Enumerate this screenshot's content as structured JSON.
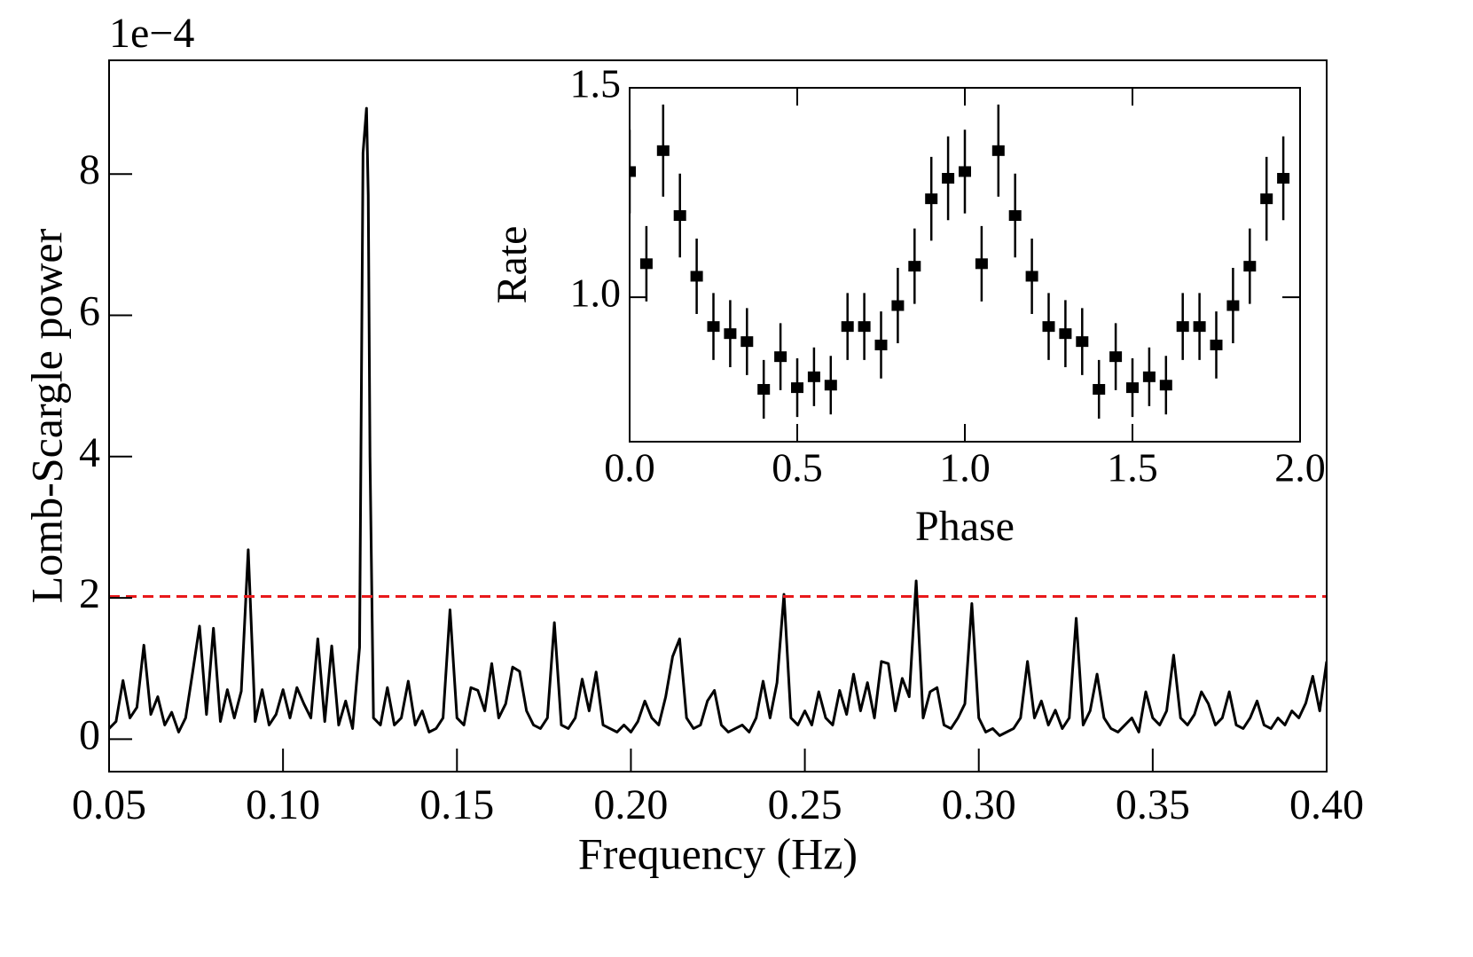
{
  "chart_data": [
    {
      "type": "line",
      "offset_text": "1e−4",
      "xlabel": "Frequency (Hz)",
      "ylabel": "Lomb-Scargle power",
      "color": "#000000",
      "xlim": [
        0.05,
        0.4
      ],
      "ylim": [
        -0.46,
        9.61
      ],
      "xticks": [
        0.05,
        {
          "value": 0.1,
          "label": "0.10"
        },
        0.15,
        {
          "value": 0.2,
          "label": "0.20"
        },
        0.25,
        {
          "value": 0.3,
          "label": "0.30"
        },
        0.35,
        {
          "value": 0.4,
          "label": "0.40"
        }
      ],
      "yticks": [
        0,
        2,
        4,
        6,
        8
      ],
      "hline": {
        "value": 2.02,
        "color": "#e8191b",
        "style": "dashed"
      },
      "x": [
        0.05,
        0.052,
        0.054,
        0.056,
        0.058,
        0.06,
        0.062,
        0.064,
        0.066,
        0.068,
        0.07,
        0.072,
        0.074,
        0.076,
        0.078,
        0.08,
        0.082,
        0.084,
        0.086,
        0.088,
        0.09,
        0.092,
        0.094,
        0.096,
        0.098,
        0.1,
        0.102,
        0.104,
        0.106,
        0.108,
        0.11,
        0.112,
        0.114,
        0.116,
        0.118,
        0.12,
        0.122,
        0.123,
        0.124,
        0.1245,
        0.125,
        0.126,
        0.128,
        0.13,
        0.132,
        0.134,
        0.136,
        0.138,
        0.14,
        0.142,
        0.144,
        0.146,
        0.148,
        0.15,
        0.152,
        0.154,
        0.156,
        0.158,
        0.16,
        0.162,
        0.164,
        0.166,
        0.168,
        0.17,
        0.172,
        0.174,
        0.176,
        0.178,
        0.18,
        0.182,
        0.184,
        0.186,
        0.188,
        0.19,
        0.192,
        0.194,
        0.196,
        0.198,
        0.2,
        0.202,
        0.204,
        0.206,
        0.208,
        0.21,
        0.212,
        0.214,
        0.216,
        0.218,
        0.22,
        0.222,
        0.224,
        0.226,
        0.228,
        0.23,
        0.232,
        0.234,
        0.236,
        0.238,
        0.24,
        0.242,
        0.244,
        0.246,
        0.248,
        0.25,
        0.252,
        0.254,
        0.256,
        0.258,
        0.26,
        0.262,
        0.264,
        0.266,
        0.268,
        0.27,
        0.272,
        0.274,
        0.276,
        0.278,
        0.28,
        0.282,
        0.284,
        0.286,
        0.288,
        0.29,
        0.292,
        0.294,
        0.296,
        0.298,
        0.3,
        0.302,
        0.304,
        0.306,
        0.308,
        0.31,
        0.312,
        0.314,
        0.316,
        0.318,
        0.32,
        0.322,
        0.324,
        0.326,
        0.328,
        0.33,
        0.332,
        0.334,
        0.336,
        0.338,
        0.34,
        0.342,
        0.344,
        0.346,
        0.348,
        0.35,
        0.352,
        0.354,
        0.356,
        0.358,
        0.36,
        0.362,
        0.364,
        0.366,
        0.368,
        0.37,
        0.372,
        0.374,
        0.376,
        0.378,
        0.38,
        0.382,
        0.384,
        0.386,
        0.388,
        0.39,
        0.392,
        0.394,
        0.396,
        0.398,
        0.4
      ],
      "values": [
        0.15,
        0.25,
        0.83,
        0.3,
        0.45,
        1.33,
        0.35,
        0.6,
        0.2,
        0.38,
        0.1,
        0.3,
        0.94,
        1.6,
        0.35,
        1.57,
        0.25,
        0.7,
        0.3,
        0.68,
        2.68,
        0.25,
        0.7,
        0.2,
        0.35,
        0.7,
        0.3,
        0.73,
        0.5,
        0.3,
        1.42,
        0.25,
        1.32,
        0.2,
        0.54,
        0.15,
        1.3,
        8.3,
        8.93,
        7.7,
        4.0,
        0.3,
        0.2,
        0.73,
        0.2,
        0.3,
        0.82,
        0.2,
        0.4,
        0.1,
        0.15,
        0.3,
        1.83,
        0.3,
        0.2,
        0.73,
        0.69,
        0.4,
        1.07,
        0.3,
        0.5,
        1.02,
        0.96,
        0.4,
        0.2,
        0.15,
        0.3,
        1.65,
        0.2,
        0.15,
        0.3,
        0.85,
        0.4,
        0.95,
        0.2,
        0.15,
        0.1,
        0.2,
        0.1,
        0.25,
        0.54,
        0.3,
        0.2,
        0.6,
        1.17,
        1.42,
        0.3,
        0.15,
        0.2,
        0.54,
        0.69,
        0.2,
        0.1,
        0.15,
        0.2,
        0.1,
        0.3,
        0.82,
        0.3,
        0.8,
        2.05,
        0.3,
        0.2,
        0.4,
        0.2,
        0.67,
        0.3,
        0.2,
        0.69,
        0.35,
        0.92,
        0.4,
        0.8,
        0.3,
        1.1,
        1.07,
        0.4,
        0.86,
        0.6,
        2.24,
        0.3,
        0.67,
        0.73,
        0.2,
        0.15,
        0.3,
        0.5,
        1.92,
        0.3,
        0.1,
        0.15,
        0.05,
        0.1,
        0.15,
        0.3,
        1.1,
        0.3,
        0.54,
        0.2,
        0.41,
        0.15,
        0.3,
        1.71,
        0.2,
        0.4,
        0.92,
        0.3,
        0.15,
        0.1,
        0.2,
        0.3,
        0.1,
        0.67,
        0.3,
        0.2,
        0.4,
        1.19,
        0.3,
        0.2,
        0.35,
        0.67,
        0.5,
        0.2,
        0.3,
        0.67,
        0.2,
        0.15,
        0.3,
        0.54,
        0.2,
        0.15,
        0.3,
        0.2,
        0.4,
        0.3,
        0.51,
        0.89,
        0.4,
        1.1
      ]
    },
    {
      "type": "errorbar",
      "xlabel": "Phase",
      "ylabel": "Rate",
      "color": "#000000",
      "xlim": [
        0,
        2
      ],
      "ylim": [
        0.655,
        1.5
      ],
      "xticks": [
        {
          "value": 0,
          "label": "0.0"
        },
        0.5,
        {
          "value": 1,
          "label": "1.0"
        },
        1.5,
        {
          "value": 2,
          "label": "2.0"
        }
      ],
      "yticks": [
        {
          "value": 1,
          "label": "1.0"
        },
        1.5
      ],
      "x": [
        0,
        0.05,
        0.1,
        0.15,
        0.2,
        0.25,
        0.3,
        0.35,
        0.4,
        0.45,
        0.5,
        0.55,
        0.6,
        0.65,
        0.7,
        0.75,
        0.8,
        0.85,
        0.9,
        0.95,
        1,
        1.05,
        1.1,
        1.15,
        1.2,
        1.25,
        1.3,
        1.35,
        1.4,
        1.45,
        1.5,
        1.55,
        1.6,
        1.65,
        1.7,
        1.75,
        1.8,
        1.85,
        1.9,
        1.95
      ],
      "values": [
        1.3,
        1.08,
        1.35,
        1.195,
        1.05,
        0.93,
        0.913,
        0.894,
        0.78,
        0.858,
        0.784,
        0.81,
        0.79,
        0.93,
        0.93,
        0.886,
        0.98,
        1.074,
        1.235,
        1.284,
        1.3,
        1.08,
        1.35,
        1.195,
        1.05,
        0.93,
        0.913,
        0.894,
        0.78,
        0.858,
        0.784,
        0.81,
        0.79,
        0.93,
        0.93,
        0.886,
        0.98,
        1.074,
        1.235,
        1.284
      ],
      "yerr": [
        0.1,
        0.09,
        0.11,
        0.1,
        0.09,
        0.08,
        0.08,
        0.08,
        0.07,
        0.08,
        0.07,
        0.07,
        0.07,
        0.08,
        0.08,
        0.08,
        0.09,
        0.09,
        0.1,
        0.1,
        0.1,
        0.09,
        0.11,
        0.1,
        0.09,
        0.08,
        0.08,
        0.08,
        0.07,
        0.08,
        0.07,
        0.07,
        0.07,
        0.08,
        0.08,
        0.08,
        0.09,
        0.09,
        0.1,
        0.1
      ]
    }
  ]
}
